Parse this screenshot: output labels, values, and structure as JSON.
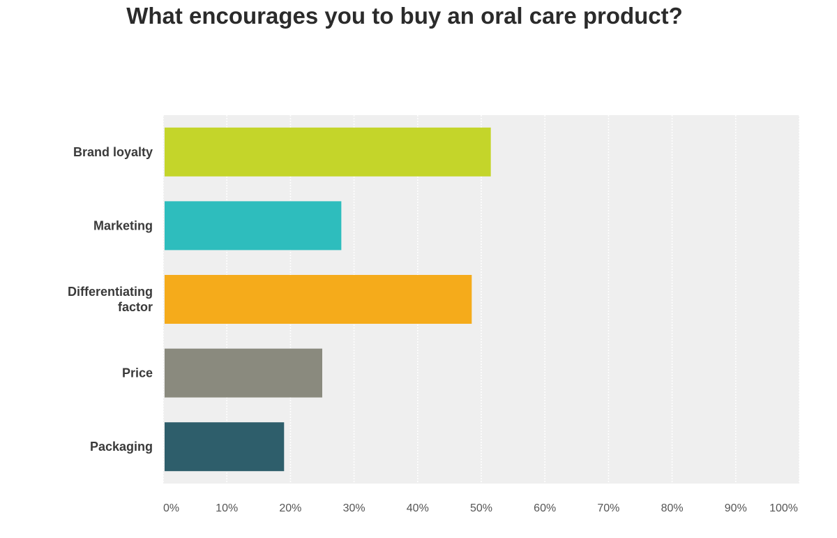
{
  "title": "What encourages you to buy an oral care product?",
  "chart_data": {
    "type": "bar",
    "orientation": "horizontal",
    "categories": [
      [
        "Brand loyalty"
      ],
      [
        "Marketing"
      ],
      [
        "Differentiating",
        "factor"
      ],
      [
        "Price"
      ],
      [
        "Packaging"
      ]
    ],
    "values": [
      51.5,
      28,
      48.5,
      25,
      19
    ],
    "colors": [
      "#c4d52a",
      "#2ebdbd",
      "#f5ab1b",
      "#8a8a7e",
      "#2e5e6b"
    ],
    "xlim": [
      0,
      100
    ],
    "xticks": [
      "0%",
      "10%",
      "20%",
      "30%",
      "40%",
      "50%",
      "60%",
      "70%",
      "80%",
      "90%",
      "100%"
    ],
    "title": "What encourages you to buy an oral care product?",
    "xlabel": "",
    "ylabel": "",
    "grid": true,
    "background": "#efefef",
    "gridline_color": "#ffffff"
  }
}
